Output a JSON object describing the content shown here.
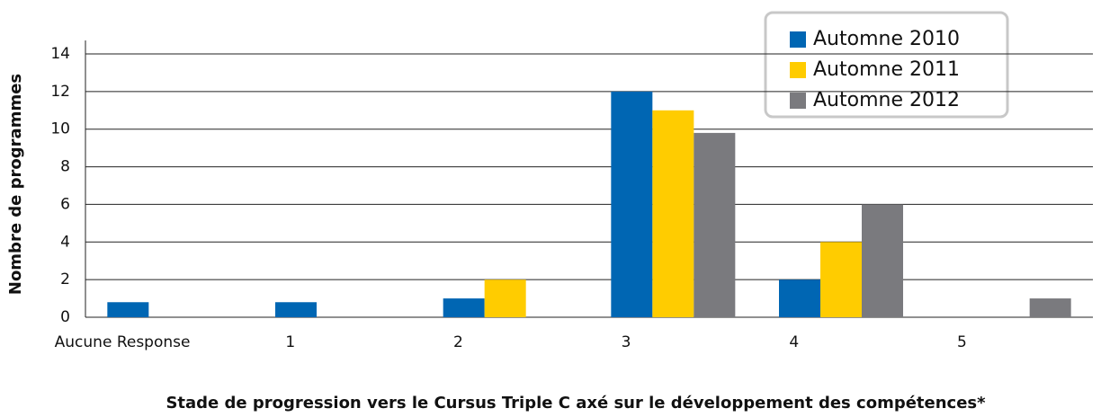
{
  "chart_data": {
    "type": "bar",
    "y_label": "Nombre de programmes",
    "x_label": "Stade de progression vers le Cursus Triple C axé sur le développement des compétences*",
    "categories": [
      "Aucune Response",
      "1",
      "2",
      "3",
      "4",
      "5"
    ],
    "series": [
      {
        "name": "Automne 2010",
        "color": "#0066b3",
        "values": [
          0.8,
          0.8,
          1,
          12,
          2,
          0
        ]
      },
      {
        "name": "Automne 2011",
        "color": "#ffcc00",
        "values": [
          0,
          0,
          2,
          11,
          4,
          0
        ]
      },
      {
        "name": "Automne 2012",
        "color": "#7a7a7e",
        "values": [
          0,
          0,
          0,
          9.8,
          6,
          1
        ]
      }
    ],
    "ylim": [
      0,
      14
    ],
    "yticks": [
      0,
      2,
      4,
      6,
      8,
      10,
      12,
      14
    ],
    "grid": true,
    "legend": "top-right"
  }
}
